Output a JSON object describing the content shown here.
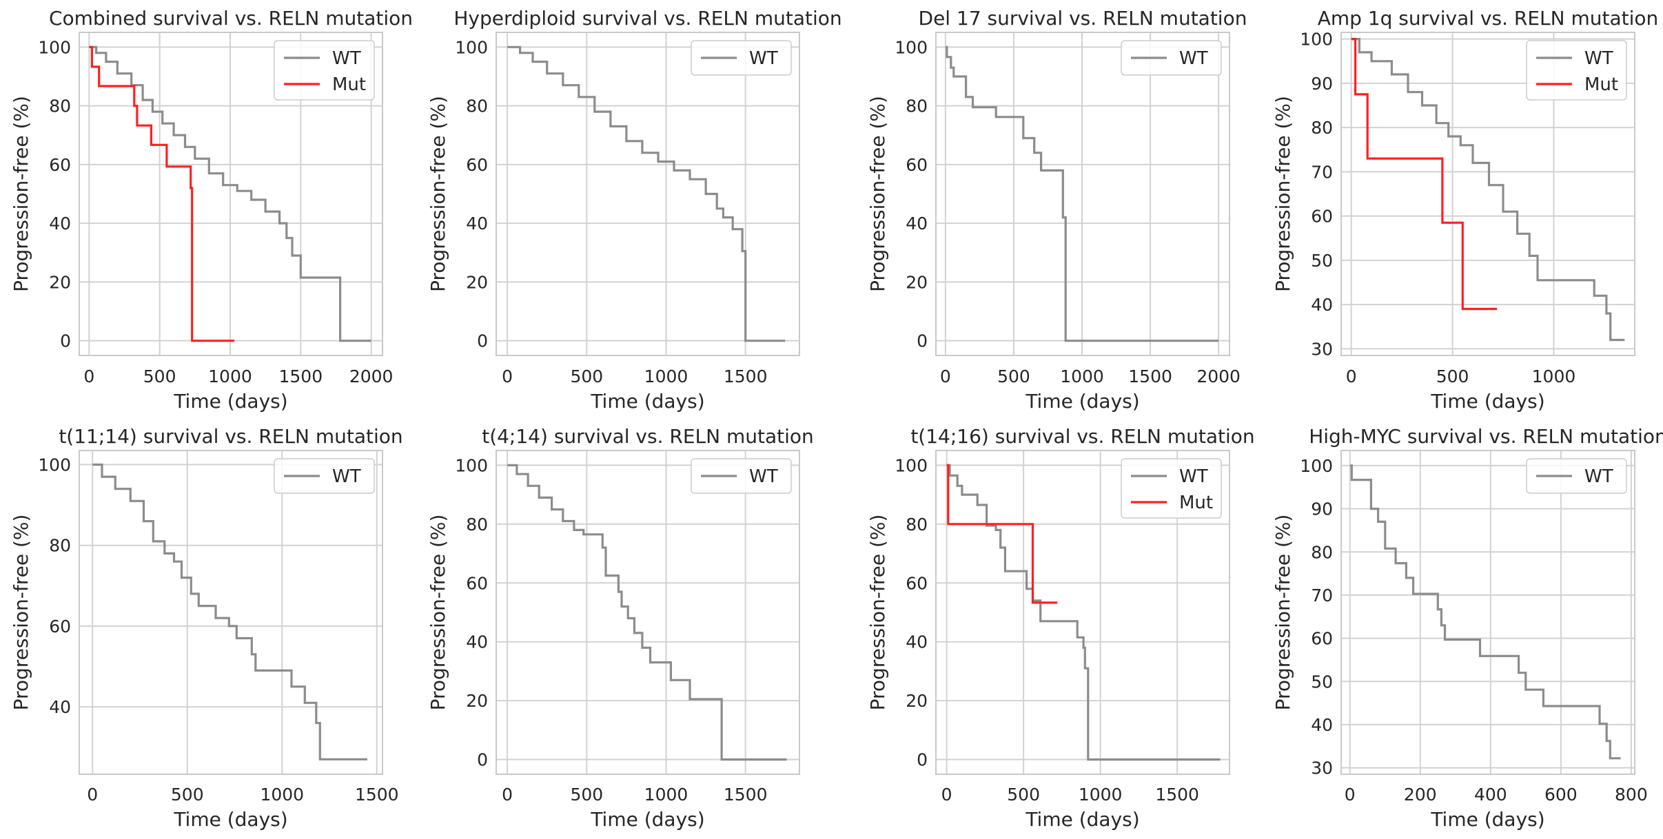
{
  "colors": {
    "WT": "#8c8c8c",
    "Mut": "#ff2020"
  },
  "chart_data": [
    {
      "type": "line",
      "step": true,
      "title": "Combined survival vs. RELN mutation",
      "xlabel": "Time (days)",
      "ylabel": "Progression-free (%)",
      "xlim": [
        -70,
        2080
      ],
      "ylim": [
        -5,
        105
      ],
      "xticks": [
        0,
        500,
        1000,
        1500,
        2000
      ],
      "yticks": [
        0,
        20,
        40,
        60,
        80,
        100
      ],
      "series": [
        {
          "name": "WT",
          "points": [
            [
              0,
              100
            ],
            [
              50,
              98
            ],
            [
              120,
              95
            ],
            [
              200,
              91
            ],
            [
              300,
              87
            ],
            [
              380,
              82
            ],
            [
              450,
              78
            ],
            [
              520,
              74
            ],
            [
              600,
              70
            ],
            [
              680,
              66
            ],
            [
              750,
              62
            ],
            [
              850,
              57
            ],
            [
              950,
              53
            ],
            [
              1050,
              51
            ],
            [
              1150,
              48
            ],
            [
              1250,
              44
            ],
            [
              1350,
              40
            ],
            [
              1400,
              35
            ],
            [
              1440,
              29
            ],
            [
              1500,
              21.5
            ],
            [
              1780,
              21.5
            ],
            [
              1780,
              0
            ],
            [
              2000,
              0
            ]
          ]
        },
        {
          "name": "Mut",
          "points": [
            [
              0,
              100
            ],
            [
              20,
              93.3
            ],
            [
              70,
              86.7
            ],
            [
              320,
              80
            ],
            [
              340,
              73.3
            ],
            [
              440,
              66.7
            ],
            [
              550,
              59.3
            ],
            [
              720,
              52
            ],
            [
              730,
              0
            ],
            [
              1030,
              0
            ]
          ]
        }
      ]
    },
    {
      "type": "line",
      "step": true,
      "title": "Hyperdiploid survival vs. RELN mutation",
      "xlabel": "Time (days)",
      "ylabel": "Progression-free (%)",
      "xlim": [
        -70,
        1840
      ],
      "ylim": [
        -5,
        105
      ],
      "xticks": [
        0,
        500,
        1000,
        1500
      ],
      "yticks": [
        0,
        20,
        40,
        60,
        80,
        100
      ],
      "series": [
        {
          "name": "WT",
          "points": [
            [
              0,
              100
            ],
            [
              80,
              98
            ],
            [
              160,
              95
            ],
            [
              250,
              91
            ],
            [
              350,
              87
            ],
            [
              450,
              83
            ],
            [
              550,
              78
            ],
            [
              650,
              73
            ],
            [
              750,
              68
            ],
            [
              850,
              64
            ],
            [
              950,
              61
            ],
            [
              1050,
              58
            ],
            [
              1150,
              55
            ],
            [
              1250,
              50
            ],
            [
              1320,
              45
            ],
            [
              1360,
              42
            ],
            [
              1420,
              38
            ],
            [
              1480,
              30.5
            ],
            [
              1500,
              30.5
            ],
            [
              1500,
              0
            ],
            [
              1750,
              0
            ]
          ]
        }
      ]
    },
    {
      "type": "line",
      "step": true,
      "title": "Del 17 survival vs. RELN mutation",
      "xlabel": "Time (days)",
      "ylabel": "Progression-free (%)",
      "xlim": [
        -70,
        2080
      ],
      "ylim": [
        -5,
        105
      ],
      "xticks": [
        0,
        500,
        1000,
        1500,
        2000
      ],
      "yticks": [
        0,
        20,
        40,
        60,
        80,
        100
      ],
      "series": [
        {
          "name": "WT",
          "points": [
            [
              0,
              100
            ],
            [
              10,
              96.6
            ],
            [
              40,
              93
            ],
            [
              60,
              90
            ],
            [
              150,
              83
            ],
            [
              200,
              79.5
            ],
            [
              370,
              76.2
            ],
            [
              570,
              69
            ],
            [
              650,
              64
            ],
            [
              700,
              58
            ],
            [
              860,
              42
            ],
            [
              880,
              0
            ],
            [
              2000,
              0
            ]
          ]
        }
      ]
    },
    {
      "type": "line",
      "step": true,
      "title": "Amp 1q survival vs. RELN mutation",
      "xlabel": "Time (days)",
      "ylabel": "Progression-free (%)",
      "xlim": [
        -50,
        1400
      ],
      "ylim": [
        28.5,
        101.5
      ],
      "xticks": [
        0,
        500,
        1000
      ],
      "yticks": [
        30,
        40,
        50,
        60,
        70,
        80,
        90,
        100
      ],
      "series": [
        {
          "name": "WT",
          "points": [
            [
              0,
              100
            ],
            [
              40,
              97
            ],
            [
              100,
              95
            ],
            [
              200,
              92
            ],
            [
              280,
              88
            ],
            [
              350,
              85
            ],
            [
              420,
              81
            ],
            [
              480,
              78
            ],
            [
              540,
              76
            ],
            [
              600,
              72
            ],
            [
              680,
              67
            ],
            [
              750,
              61
            ],
            [
              820,
              56
            ],
            [
              880,
              51
            ],
            [
              920,
              45.5
            ],
            [
              1200,
              45.5
            ],
            [
              1200,
              42
            ],
            [
              1260,
              38
            ],
            [
              1280,
              32
            ],
            [
              1350,
              32
            ]
          ]
        },
        {
          "name": "Mut",
          "points": [
            [
              0,
              100
            ],
            [
              20,
              87.5
            ],
            [
              80,
              73
            ],
            [
              450,
              73
            ],
            [
              450,
              58.5
            ],
            [
              550,
              58.5
            ],
            [
              550,
              39
            ],
            [
              720,
              39
            ]
          ]
        }
      ]
    },
    {
      "type": "line",
      "step": true,
      "title": "t(11;14) survival vs. RELN mutation",
      "xlabel": "Time (days)",
      "ylabel": "Progression-free (%)",
      "xlim": [
        -70,
        1530
      ],
      "ylim": [
        23.3,
        103.5
      ],
      "xticks": [
        0,
        500,
        1000,
        1500
      ],
      "yticks": [
        40,
        60,
        80,
        100
      ],
      "series": [
        {
          "name": "WT",
          "points": [
            [
              0,
              100
            ],
            [
              50,
              97
            ],
            [
              120,
              94
            ],
            [
              200,
              91
            ],
            [
              270,
              86
            ],
            [
              320,
              81
            ],
            [
              380,
              78
            ],
            [
              430,
              76
            ],
            [
              470,
              72
            ],
            [
              520,
              68
            ],
            [
              560,
              65
            ],
            [
              650,
              62
            ],
            [
              720,
              60
            ],
            [
              760,
              57
            ],
            [
              840,
              53
            ],
            [
              860,
              49
            ],
            [
              1050,
              49
            ],
            [
              1050,
              45
            ],
            [
              1120,
              41
            ],
            [
              1180,
              36
            ],
            [
              1200,
              27
            ],
            [
              1450,
              27
            ]
          ]
        }
      ]
    },
    {
      "type": "line",
      "step": true,
      "title": "t(4;14) survival vs. RELN mutation",
      "xlabel": "Time (days)",
      "ylabel": "Progression-free (%)",
      "xlim": [
        -70,
        1840
      ],
      "ylim": [
        -5,
        105
      ],
      "xticks": [
        0,
        500,
        1000,
        1500
      ],
      "yticks": [
        0,
        20,
        40,
        60,
        80,
        100
      ],
      "series": [
        {
          "name": "WT",
          "points": [
            [
              0,
              100
            ],
            [
              60,
              97
            ],
            [
              130,
              93
            ],
            [
              200,
              89
            ],
            [
              280,
              85
            ],
            [
              350,
              81
            ],
            [
              420,
              78
            ],
            [
              480,
              76.5
            ],
            [
              580,
              76.5
            ],
            [
              600,
              72
            ],
            [
              620,
              62.5
            ],
            [
              700,
              57
            ],
            [
              720,
              52
            ],
            [
              760,
              48
            ],
            [
              800,
              43
            ],
            [
              850,
              38
            ],
            [
              900,
              33
            ],
            [
              1030,
              33
            ],
            [
              1030,
              27
            ],
            [
              1150,
              20.5
            ],
            [
              1350,
              20.5
            ],
            [
              1350,
              0
            ],
            [
              1760,
              0
            ]
          ]
        }
      ]
    },
    {
      "type": "line",
      "step": true,
      "title": "t(14;16) survival vs. RELN mutation",
      "xlabel": "Time (days)",
      "ylabel": "Progression-free (%)",
      "xlim": [
        -70,
        1840
      ],
      "ylim": [
        -5,
        105
      ],
      "xticks": [
        0,
        500,
        1000,
        1500
      ],
      "yticks": [
        0,
        20,
        40,
        60,
        80,
        100
      ],
      "series": [
        {
          "name": "WT",
          "points": [
            [
              0,
              100
            ],
            [
              20,
              96.5
            ],
            [
              70,
              93
            ],
            [
              100,
              90
            ],
            [
              200,
              86.5
            ],
            [
              260,
              79.5
            ],
            [
              320,
              78
            ],
            [
              350,
              72
            ],
            [
              380,
              64
            ],
            [
              500,
              64
            ],
            [
              520,
              58
            ],
            [
              560,
              54
            ],
            [
              610,
              47
            ],
            [
              850,
              47
            ],
            [
              850,
              41.5
            ],
            [
              890,
              38
            ],
            [
              900,
              31
            ],
            [
              920,
              0
            ],
            [
              1780,
              0
            ]
          ]
        },
        {
          "name": "Mut",
          "points": [
            [
              0,
              100
            ],
            [
              10,
              80
            ],
            [
              560,
              80
            ],
            [
              560,
              53.3
            ],
            [
              720,
              53.3
            ]
          ]
        }
      ]
    },
    {
      "type": "line",
      "step": true,
      "title": "High-MYC survival vs. RELN mutation",
      "xlabel": "Time (days)",
      "ylabel": "Progression-free (%)",
      "xlim": [
        -25,
        810
      ],
      "ylim": [
        28.5,
        103.5
      ],
      "xticks": [
        0,
        200,
        400,
        600,
        800
      ],
      "yticks": [
        30,
        40,
        50,
        60,
        70,
        80,
        90,
        100
      ],
      "series": [
        {
          "name": "WT",
          "points": [
            [
              0,
              100
            ],
            [
              5,
              96.7
            ],
            [
              60,
              96.7
            ],
            [
              60,
              90
            ],
            [
              80,
              87
            ],
            [
              100,
              80.8
            ],
            [
              130,
              77.4
            ],
            [
              160,
              74
            ],
            [
              180,
              70.3
            ],
            [
              250,
              70.3
            ],
            [
              250,
              66.7
            ],
            [
              260,
              63
            ],
            [
              270,
              59.7
            ],
            [
              370,
              59.7
            ],
            [
              370,
              55.9
            ],
            [
              480,
              55.9
            ],
            [
              480,
              52
            ],
            [
              500,
              48.1
            ],
            [
              550,
              48.1
            ],
            [
              550,
              44.3
            ],
            [
              710,
              44.3
            ],
            [
              710,
              40.2
            ],
            [
              730,
              36.2
            ],
            [
              740,
              32.2
            ],
            [
              770,
              32.2
            ]
          ]
        }
      ]
    }
  ]
}
